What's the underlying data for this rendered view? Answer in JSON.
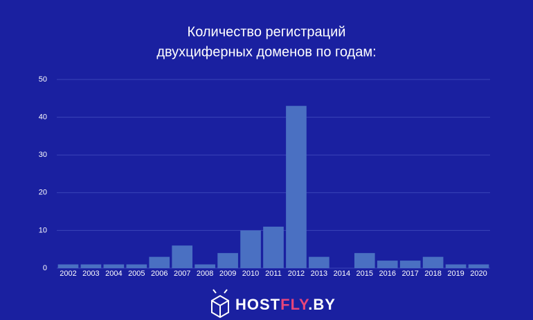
{
  "chart_data": {
    "type": "bar",
    "title": [
      "Количество регистраций",
      "двухциферных доменов по годам:"
    ],
    "categories": [
      "2002",
      "2003",
      "2004",
      "2005",
      "2006",
      "2007",
      "2008",
      "2009",
      "2010",
      "2011",
      "2012",
      "2013",
      "2014",
      "2015",
      "2016",
      "2017",
      "2018",
      "2019",
      "2020"
    ],
    "values": [
      1,
      1,
      1,
      1,
      3,
      6,
      1,
      4,
      10,
      11,
      43,
      3,
      0,
      4,
      2,
      2,
      3,
      1,
      1
    ],
    "color": "#4a70c2",
    "ylim": [
      0,
      50
    ],
    "yticks": [
      0,
      10,
      20,
      30,
      40,
      50
    ],
    "grid": true
  },
  "logo": {
    "parts": [
      "HOST",
      "FLY",
      ".BY"
    ]
  }
}
